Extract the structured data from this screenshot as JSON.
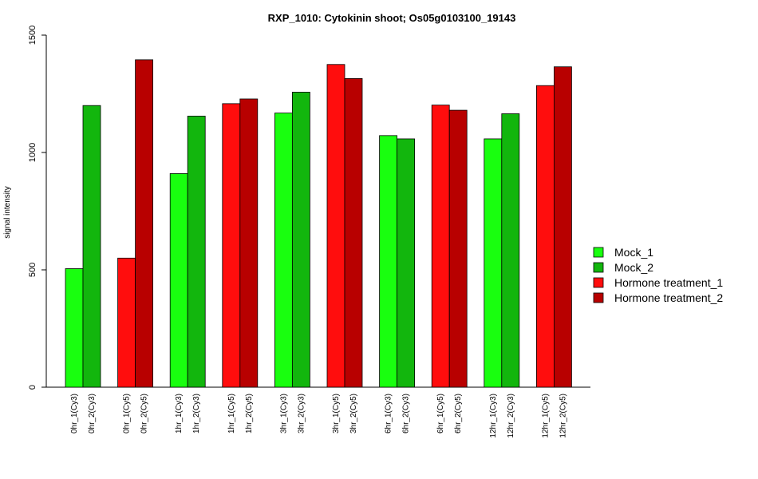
{
  "chart_data": {
    "type": "bar",
    "title": "RXP_1010: Cytokinin shoot; Os05g0103100_19143",
    "xlabel": "",
    "ylabel": "signal intensity",
    "ylim": [
      0,
      1500
    ],
    "y_ticks": [
      0,
      500,
      1000,
      1500
    ],
    "grid": false,
    "legend_position": "right",
    "categories": [
      "0hr_1(Cy3)",
      "0hr_2(Cy3)",
      "0hr_1(Cy5)",
      "0hr_2(Cy5)",
      "1hr_1(Cy3)",
      "1hr_2(Cy3)",
      "1hr_1(Cy5)",
      "1hr_2(Cy5)",
      "3hr_1(Cy3)",
      "3hr_2(Cy3)",
      "3hr_1(Cy5)",
      "3hr_2(Cy5)",
      "6hr_1(Cy3)",
      "6hr_2(Cy3)",
      "6hr_1(Cy5)",
      "6hr_2(Cy5)",
      "12hr_1(Cy3)",
      "12hr_2(Cy3)",
      "12hr_1(Cy5)",
      "12hr_2(Cy5)"
    ],
    "values": [
      505,
      1200,
      550,
      1395,
      910,
      1155,
      1208,
      1228,
      1168,
      1257,
      1375,
      1315,
      1072,
      1058,
      1202,
      1180,
      1058,
      1165,
      1285,
      1365
    ],
    "bar_series": [
      "Mock_1",
      "Mock_2",
      "Hormone treatment_1",
      "Hormone treatment_2",
      "Mock_1",
      "Mock_2",
      "Hormone treatment_1",
      "Hormone treatment_2",
      "Mock_1",
      "Mock_2",
      "Hormone treatment_1",
      "Hormone treatment_2",
      "Mock_1",
      "Mock_2",
      "Hormone treatment_1",
      "Hormone treatment_2",
      "Mock_1",
      "Mock_2",
      "Hormone treatment_1",
      "Hormone treatment_2"
    ],
    "legend": [
      {
        "name": "Mock_1",
        "color": "#19ff0f"
      },
      {
        "name": "Mock_2",
        "color": "#12b60d"
      },
      {
        "name": "Hormone treatment_1",
        "color": "#ff0d0d"
      },
      {
        "name": "Hormone treatment_2",
        "color": "#b80000"
      }
    ]
  }
}
